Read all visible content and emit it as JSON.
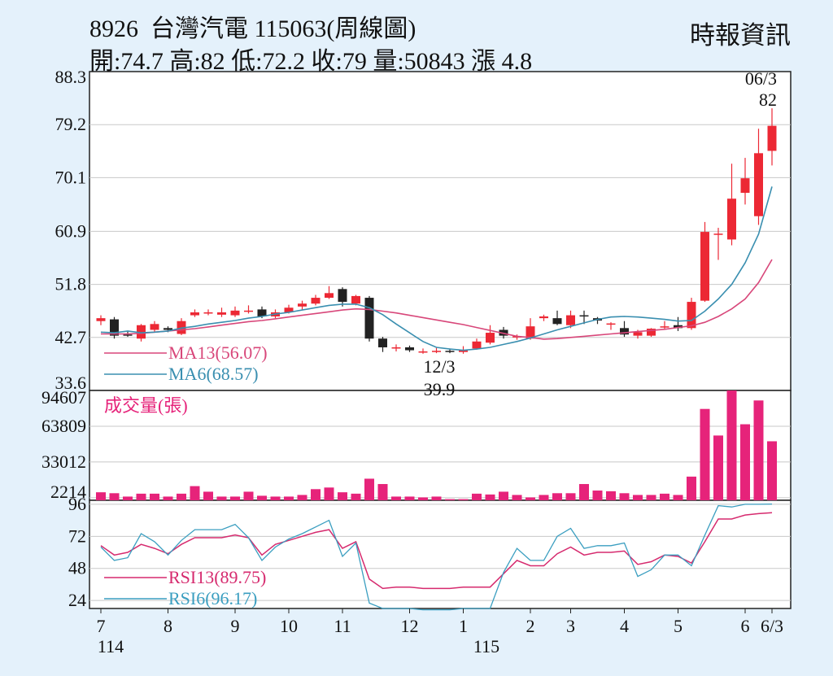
{
  "header": {
    "code": "8926",
    "name": "台灣汽電",
    "index": "115063(周線圖)",
    "stats": "開:74.7 高:82 低:72.2 收:79 量:50843 漲 4.8",
    "source": "時報資訊"
  },
  "colors": {
    "background": "#e4f1fb",
    "plot_background": "#ffffff",
    "up": "#ec2834",
    "down": "#222222",
    "ma13": "#d8477a",
    "ma6": "#3a8fb0",
    "volume": "#e6237a",
    "rsi13": "#d62a6e",
    "rsi6": "#3a9ec0",
    "grid": "#c8c8c8"
  },
  "chart_data": [
    {
      "type": "candlestick",
      "title": "8926 台灣汽電 115063(周線圖)",
      "y_ticks": [
        "88.3",
        "79.2",
        "70.1",
        "60.9",
        "51.8",
        "42.7",
        "33.6"
      ],
      "ylim": [
        33.6,
        88.3
      ],
      "grid": true,
      "annotations": [
        {
          "date": "12/3",
          "value": "39.9"
        },
        {
          "date": "06/3",
          "value": "82"
        }
      ],
      "legend": [
        {
          "label": "MA13(56.07)"
        },
        {
          "label": "MA6(68.57)"
        }
      ],
      "ohlc": [
        [
          45.5,
          46.5,
          44.8,
          46.0
        ],
        [
          45.8,
          46.2,
          42.5,
          43.0
        ],
        [
          43.2,
          43.8,
          42.8,
          43.0
        ],
        [
          42.5,
          45.0,
          42.0,
          44.8
        ],
        [
          44.0,
          45.5,
          43.6,
          45.0
        ],
        [
          44.3,
          44.6,
          43.6,
          44.0
        ],
        [
          43.3,
          46.0,
          43.1,
          45.5
        ],
        [
          46.5,
          47.5,
          46.2,
          47.0
        ],
        [
          47.0,
          47.5,
          46.5,
          47.0
        ],
        [
          46.6,
          47.8,
          46.2,
          47.0
        ],
        [
          46.5,
          48.0,
          46.2,
          47.3
        ],
        [
          47.2,
          48.2,
          46.8,
          47.3
        ],
        [
          47.5,
          48.0,
          46.0,
          46.3
        ],
        [
          46.3,
          47.5,
          46.0,
          47.0
        ],
        [
          47.0,
          48.3,
          46.8,
          47.8
        ],
        [
          48.0,
          49.0,
          47.5,
          48.5
        ],
        [
          48.5,
          50.0,
          48.2,
          49.5
        ],
        [
          49.5,
          51.5,
          49.3,
          50.3
        ],
        [
          51.0,
          51.3,
          48.0,
          48.8
        ],
        [
          48.5,
          50.0,
          48.2,
          49.8
        ],
        [
          49.5,
          49.8,
          42.0,
          42.5
        ],
        [
          42.5,
          42.8,
          40.2,
          41.0
        ],
        [
          41.0,
          41.5,
          40.3,
          41.0
        ],
        [
          41.0,
          41.3,
          40.2,
          40.5
        ],
        [
          40.2,
          40.8,
          39.9,
          40.3
        ],
        [
          40.3,
          40.9,
          40.0,
          40.4
        ],
        [
          40.4,
          40.8,
          40.0,
          40.3
        ],
        [
          40.2,
          41.2,
          39.9,
          40.5
        ],
        [
          40.8,
          42.5,
          40.6,
          42.0
        ],
        [
          41.8,
          44.8,
          41.5,
          43.5
        ],
        [
          44.0,
          44.5,
          42.5,
          43.0
        ],
        [
          42.8,
          43.2,
          42.3,
          42.9
        ],
        [
          42.5,
          46.0,
          42.3,
          44.6
        ],
        [
          46.0,
          46.6,
          45.5,
          46.3
        ],
        [
          46.0,
          47.3,
          44.8,
          45.0
        ],
        [
          44.8,
          47.3,
          44.3,
          46.5
        ],
        [
          46.5,
          47.3,
          45.0,
          46.4
        ],
        [
          46.0,
          46.2,
          45.0,
          45.6
        ],
        [
          45.0,
          45.3,
          44.0,
          45.1
        ],
        [
          44.3,
          45.5,
          42.8,
          43.2
        ],
        [
          43.0,
          44.0,
          42.5,
          43.6
        ],
        [
          43.0,
          44.3,
          42.8,
          44.2
        ],
        [
          44.5,
          45.5,
          44.0,
          44.6
        ],
        [
          44.8,
          46.2,
          43.8,
          44.3
        ],
        [
          44.3,
          49.5,
          44.0,
          48.8
        ],
        [
          49.0,
          62.5,
          48.8,
          60.8
        ],
        [
          60.3,
          61.5,
          56.0,
          60.5
        ],
        [
          59.5,
          72.5,
          58.5,
          66.5
        ],
        [
          67.5,
          73.5,
          65.5,
          70.0
        ],
        [
          63.5,
          78.5,
          62.0,
          74.3
        ],
        [
          74.7,
          82.0,
          72.2,
          79.0
        ]
      ],
      "ma13": [
        43.3,
        43.3,
        43.3,
        43.4,
        43.6,
        43.8,
        44.0,
        44.2,
        44.5,
        44.8,
        45.1,
        45.4,
        45.6,
        45.9,
        46.2,
        46.5,
        46.8,
        47.1,
        47.4,
        47.6,
        47.5,
        47.2,
        46.9,
        46.5,
        46.1,
        45.7,
        45.3,
        44.9,
        44.4,
        43.9,
        43.4,
        42.9,
        42.7,
        42.4,
        42.5,
        42.7,
        42.9,
        43.1,
        43.3,
        43.5,
        43.7,
        43.9,
        44.1,
        44.4,
        44.7,
        45.3,
        46.3,
        47.6,
        49.3,
        52.1,
        56.07
      ],
      "ma6": [
        43.6,
        43.5,
        43.8,
        43.5,
        43.6,
        43.8,
        44.3,
        44.6,
        45.0,
        45.3,
        45.6,
        46.0,
        46.3,
        46.7,
        47.0,
        47.4,
        47.8,
        48.2,
        48.4,
        48.4,
        47.8,
        46.6,
        45.0,
        43.5,
        42.0,
        41.0,
        40.7,
        40.5,
        40.7,
        41.0,
        41.5,
        42.0,
        42.6,
        43.3,
        44.0,
        44.6,
        45.2,
        45.8,
        46.2,
        46.3,
        46.2,
        46.0,
        45.8,
        45.5,
        45.6,
        47.2,
        49.3,
        51.8,
        55.5,
        60.4,
        68.57
      ]
    },
    {
      "type": "bar",
      "title": "成交量(張)",
      "y_ticks": [
        "94607",
        "63809",
        "33012",
        "2214"
      ],
      "ylim": [
        0,
        94607
      ],
      "values": [
        6900,
        6100,
        3200,
        5700,
        5700,
        3200,
        5700,
        12200,
        7400,
        3200,
        3200,
        7400,
        3900,
        3200,
        3200,
        4600,
        9600,
        11000,
        6900,
        5700,
        18600,
        14000,
        3200,
        3200,
        2500,
        3200,
        1000,
        1000,
        5700,
        5000,
        7400,
        4600,
        2500,
        4600,
        6100,
        6100,
        14000,
        8400,
        7800,
        6100,
        4600,
        4600,
        5700,
        4600,
        20400,
        78700,
        55800,
        94607,
        65500,
        86000,
        50843
      ]
    },
    {
      "type": "line",
      "title": "RSI",
      "y_ticks": [
        "96",
        "72",
        "48",
        "24"
      ],
      "ylim": [
        18,
        99
      ],
      "legend": [
        {
          "label": "RSI13(89.75)"
        },
        {
          "label": "RSI6(96.17)"
        }
      ],
      "rsi13": [
        65,
        58,
        60,
        66,
        63,
        59,
        66,
        71,
        71,
        71,
        73,
        71,
        58,
        66,
        69,
        72,
        75,
        77,
        63,
        68,
        40,
        33,
        34,
        34,
        33,
        33,
        33,
        34,
        34,
        34,
        44,
        54,
        50,
        50,
        59,
        64,
        58,
        60,
        60,
        61,
        51,
        53,
        58,
        57,
        52,
        68,
        85,
        85,
        88,
        89,
        89.75
      ],
      "rsi6": [
        64,
        54,
        56,
        74,
        68,
        58,
        69,
        77,
        77,
        77,
        81,
        71,
        54,
        64,
        70,
        74,
        79,
        84,
        57,
        67,
        22,
        18,
        18,
        18,
        17,
        17,
        17,
        18,
        18,
        18,
        45,
        63,
        54,
        54,
        72,
        78,
        63,
        65,
        65,
        67,
        42,
        47,
        58,
        58,
        50,
        73,
        95,
        94,
        96,
        96,
        96.17
      ]
    }
  ],
  "x_axis": {
    "ticks": [
      {
        "label": "7",
        "i": 0
      },
      {
        "label": "8",
        "i": 5
      },
      {
        "label": "9",
        "i": 10
      },
      {
        "label": "10",
        "i": 14
      },
      {
        "label": "11",
        "i": 18
      },
      {
        "label": "12",
        "i": 23
      },
      {
        "label": "1",
        "i": 27
      },
      {
        "label": "2",
        "i": 32
      },
      {
        "label": "3",
        "i": 35
      },
      {
        "label": "4",
        "i": 39
      },
      {
        "label": "5",
        "i": 43
      },
      {
        "label": "6",
        "i": 48
      },
      {
        "label": "6/3",
        "i": 50
      }
    ],
    "year_labels": [
      {
        "label": "114",
        "i": 0
      },
      {
        "label": "115",
        "i": 28
      }
    ]
  }
}
